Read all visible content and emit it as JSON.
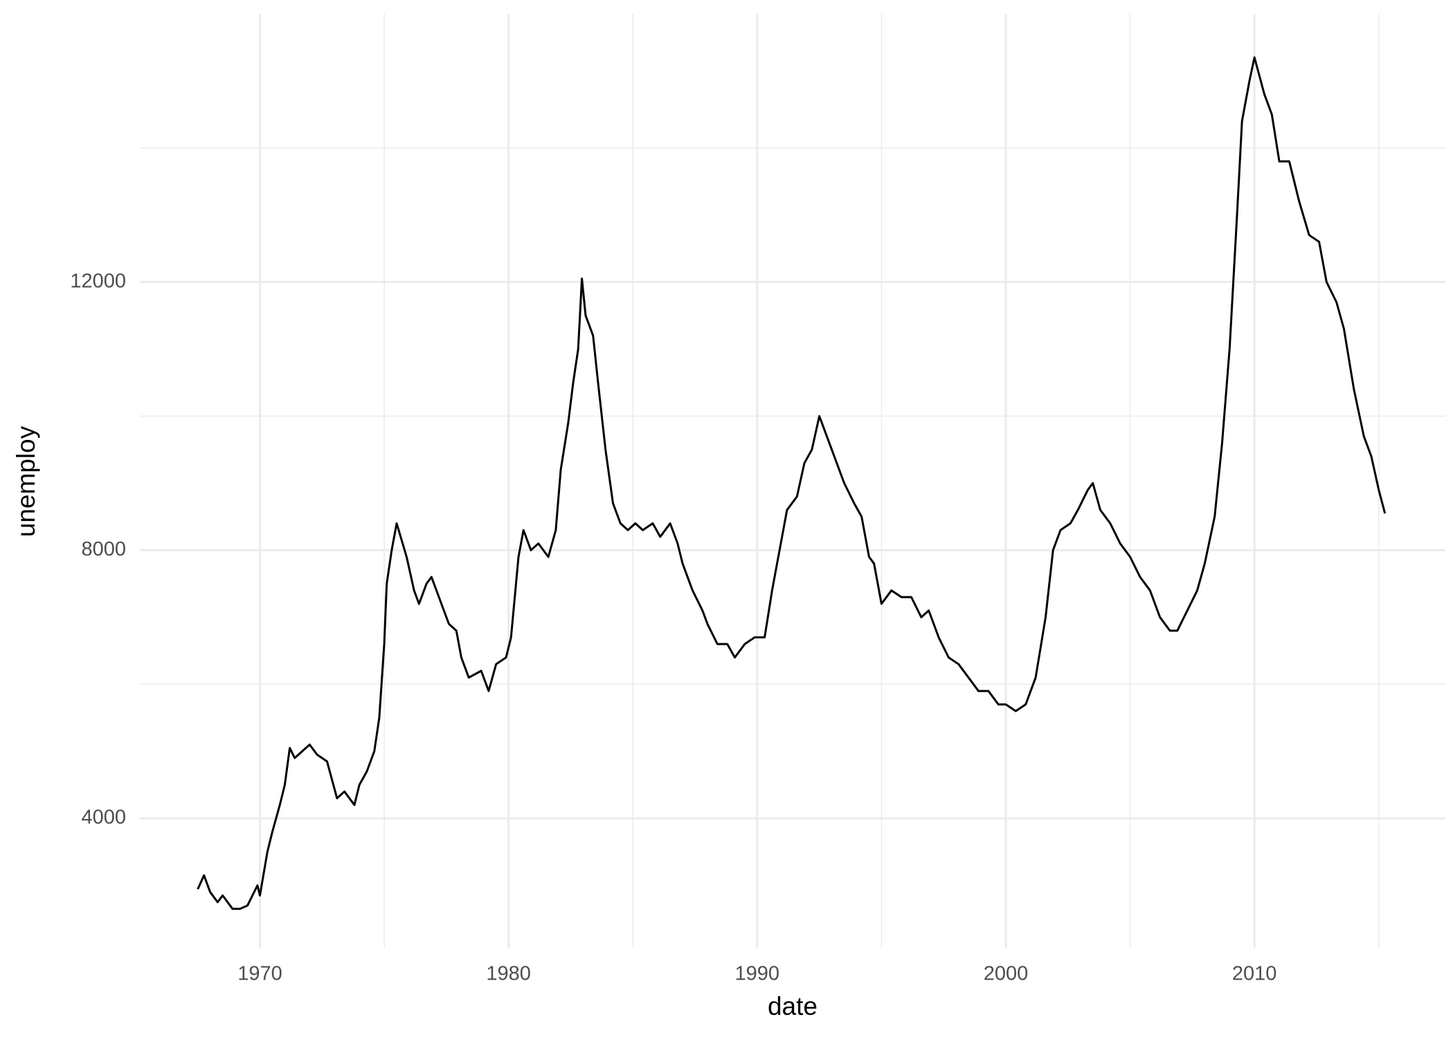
{
  "chart_data": {
    "type": "line",
    "x_label": "date",
    "y_label": "unemploy",
    "x": [
      1967.5,
      1967.75,
      1968.0,
      1968.3,
      1968.5,
      1968.9,
      1969.2,
      1969.5,
      1969.9,
      1970.0,
      1970.3,
      1970.5,
      1970.8,
      1971.0,
      1971.2,
      1971.4,
      1971.7,
      1972.0,
      1972.3,
      1972.7,
      1973.1,
      1973.4,
      1973.8,
      1974.0,
      1974.3,
      1974.6,
      1974.8,
      1975.0,
      1975.1,
      1975.3,
      1975.5,
      1975.9,
      1976.2,
      1976.4,
      1976.7,
      1976.9,
      1977.2,
      1977.6,
      1977.9,
      1978.1,
      1978.4,
      1978.9,
      1979.2,
      1979.5,
      1979.9,
      1980.1,
      1980.4,
      1980.6,
      1980.9,
      1981.2,
      1981.6,
      1981.9,
      1982.1,
      1982.4,
      1982.6,
      1982.8,
      1982.95,
      1983.1,
      1983.4,
      1983.6,
      1983.9,
      1984.2,
      1984.5,
      1984.8,
      1985.1,
      1985.4,
      1985.8,
      1986.1,
      1986.5,
      1986.8,
      1987.0,
      1987.4,
      1987.8,
      1988.0,
      1988.4,
      1988.8,
      1989.1,
      1989.5,
      1989.9,
      1990.3,
      1990.6,
      1990.9,
      1991.2,
      1991.6,
      1991.9,
      1992.2,
      1992.5,
      1992.8,
      1993.2,
      1993.5,
      1993.9,
      1994.2,
      1994.5,
      1994.7,
      1995.0,
      1995.4,
      1995.8,
      1996.2,
      1996.6,
      1996.9,
      1997.3,
      1997.7,
      1998.1,
      1998.5,
      1998.9,
      1999.3,
      1999.7,
      2000.0,
      2000.4,
      2000.8,
      2001.2,
      2001.6,
      2001.9,
      2002.2,
      2002.6,
      2002.9,
      2003.3,
      2003.5,
      2003.8,
      2004.2,
      2004.6,
      2005.0,
      2005.4,
      2005.8,
      2006.2,
      2006.6,
      2006.9,
      2007.3,
      2007.7,
      2008.0,
      2008.4,
      2008.7,
      2009.0,
      2009.3,
      2009.5,
      2009.8,
      2010.0,
      2010.4,
      2010.7,
      2011.0,
      2011.4,
      2011.8,
      2012.2,
      2012.6,
      2012.9,
      2013.3,
      2013.6,
      2014.0,
      2014.4,
      2014.7,
      2015.0,
      2015.25
    ],
    "series": [
      {
        "color": "#000000",
        "values": [
          2944,
          3150,
          2900,
          2750,
          2850,
          2650,
          2650,
          2700,
          3000,
          2850,
          3500,
          3800,
          4200,
          4500,
          5050,
          4900,
          5000,
          5100,
          4950,
          4850,
          4300,
          4400,
          4200,
          4500,
          4700,
          5000,
          5500,
          6600,
          7500,
          8000,
          8400,
          7900,
          7400,
          7200,
          7500,
          7600,
          7300,
          6900,
          6800,
          6400,
          6100,
          6200,
          5900,
          6300,
          6400,
          6700,
          7900,
          8300,
          8000,
          8100,
          7900,
          8300,
          9200,
          9900,
          10500,
          11000,
          12050,
          11500,
          11200,
          10500,
          9500,
          8700,
          8400,
          8300,
          8400,
          8300,
          8400,
          8200,
          8400,
          8100,
          7800,
          7400,
          7100,
          6900,
          6600,
          6600,
          6400,
          6600,
          6700,
          6700,
          7400,
          8000,
          8600,
          8800,
          9300,
          9500,
          10000,
          9700,
          9300,
          9000,
          8700,
          8500,
          7900,
          7800,
          7200,
          7400,
          7300,
          7300,
          7000,
          7100,
          6700,
          6400,
          6300,
          6100,
          5900,
          5900,
          5700,
          5700,
          5600,
          5700,
          6100,
          7000,
          8000,
          8300,
          8400,
          8600,
          8900,
          9000,
          8600,
          8400,
          8100,
          7900,
          7600,
          7400,
          7000,
          6800,
          6800,
          7100,
          7400,
          7800,
          8500,
          9600,
          11000,
          13000,
          14400,
          15000,
          15350,
          14800,
          14500,
          13800,
          13800,
          13200,
          12700,
          12600,
          12000,
          11700,
          11300,
          10400,
          9700,
          9400,
          8900,
          8549
        ]
      }
    ],
    "xlim": [
      1965.17,
      2017.68
    ],
    "xticks": [
      1970,
      1980,
      1990,
      2000,
      2010
    ],
    "xminor": [
      1975,
      1985,
      1995,
      2005,
      2015
    ],
    "ylim": [
      2070,
      16000
    ],
    "yticks": [
      4000,
      8000,
      12000
    ],
    "yminor": [
      6000,
      10000,
      14000
    ],
    "grid": true
  }
}
